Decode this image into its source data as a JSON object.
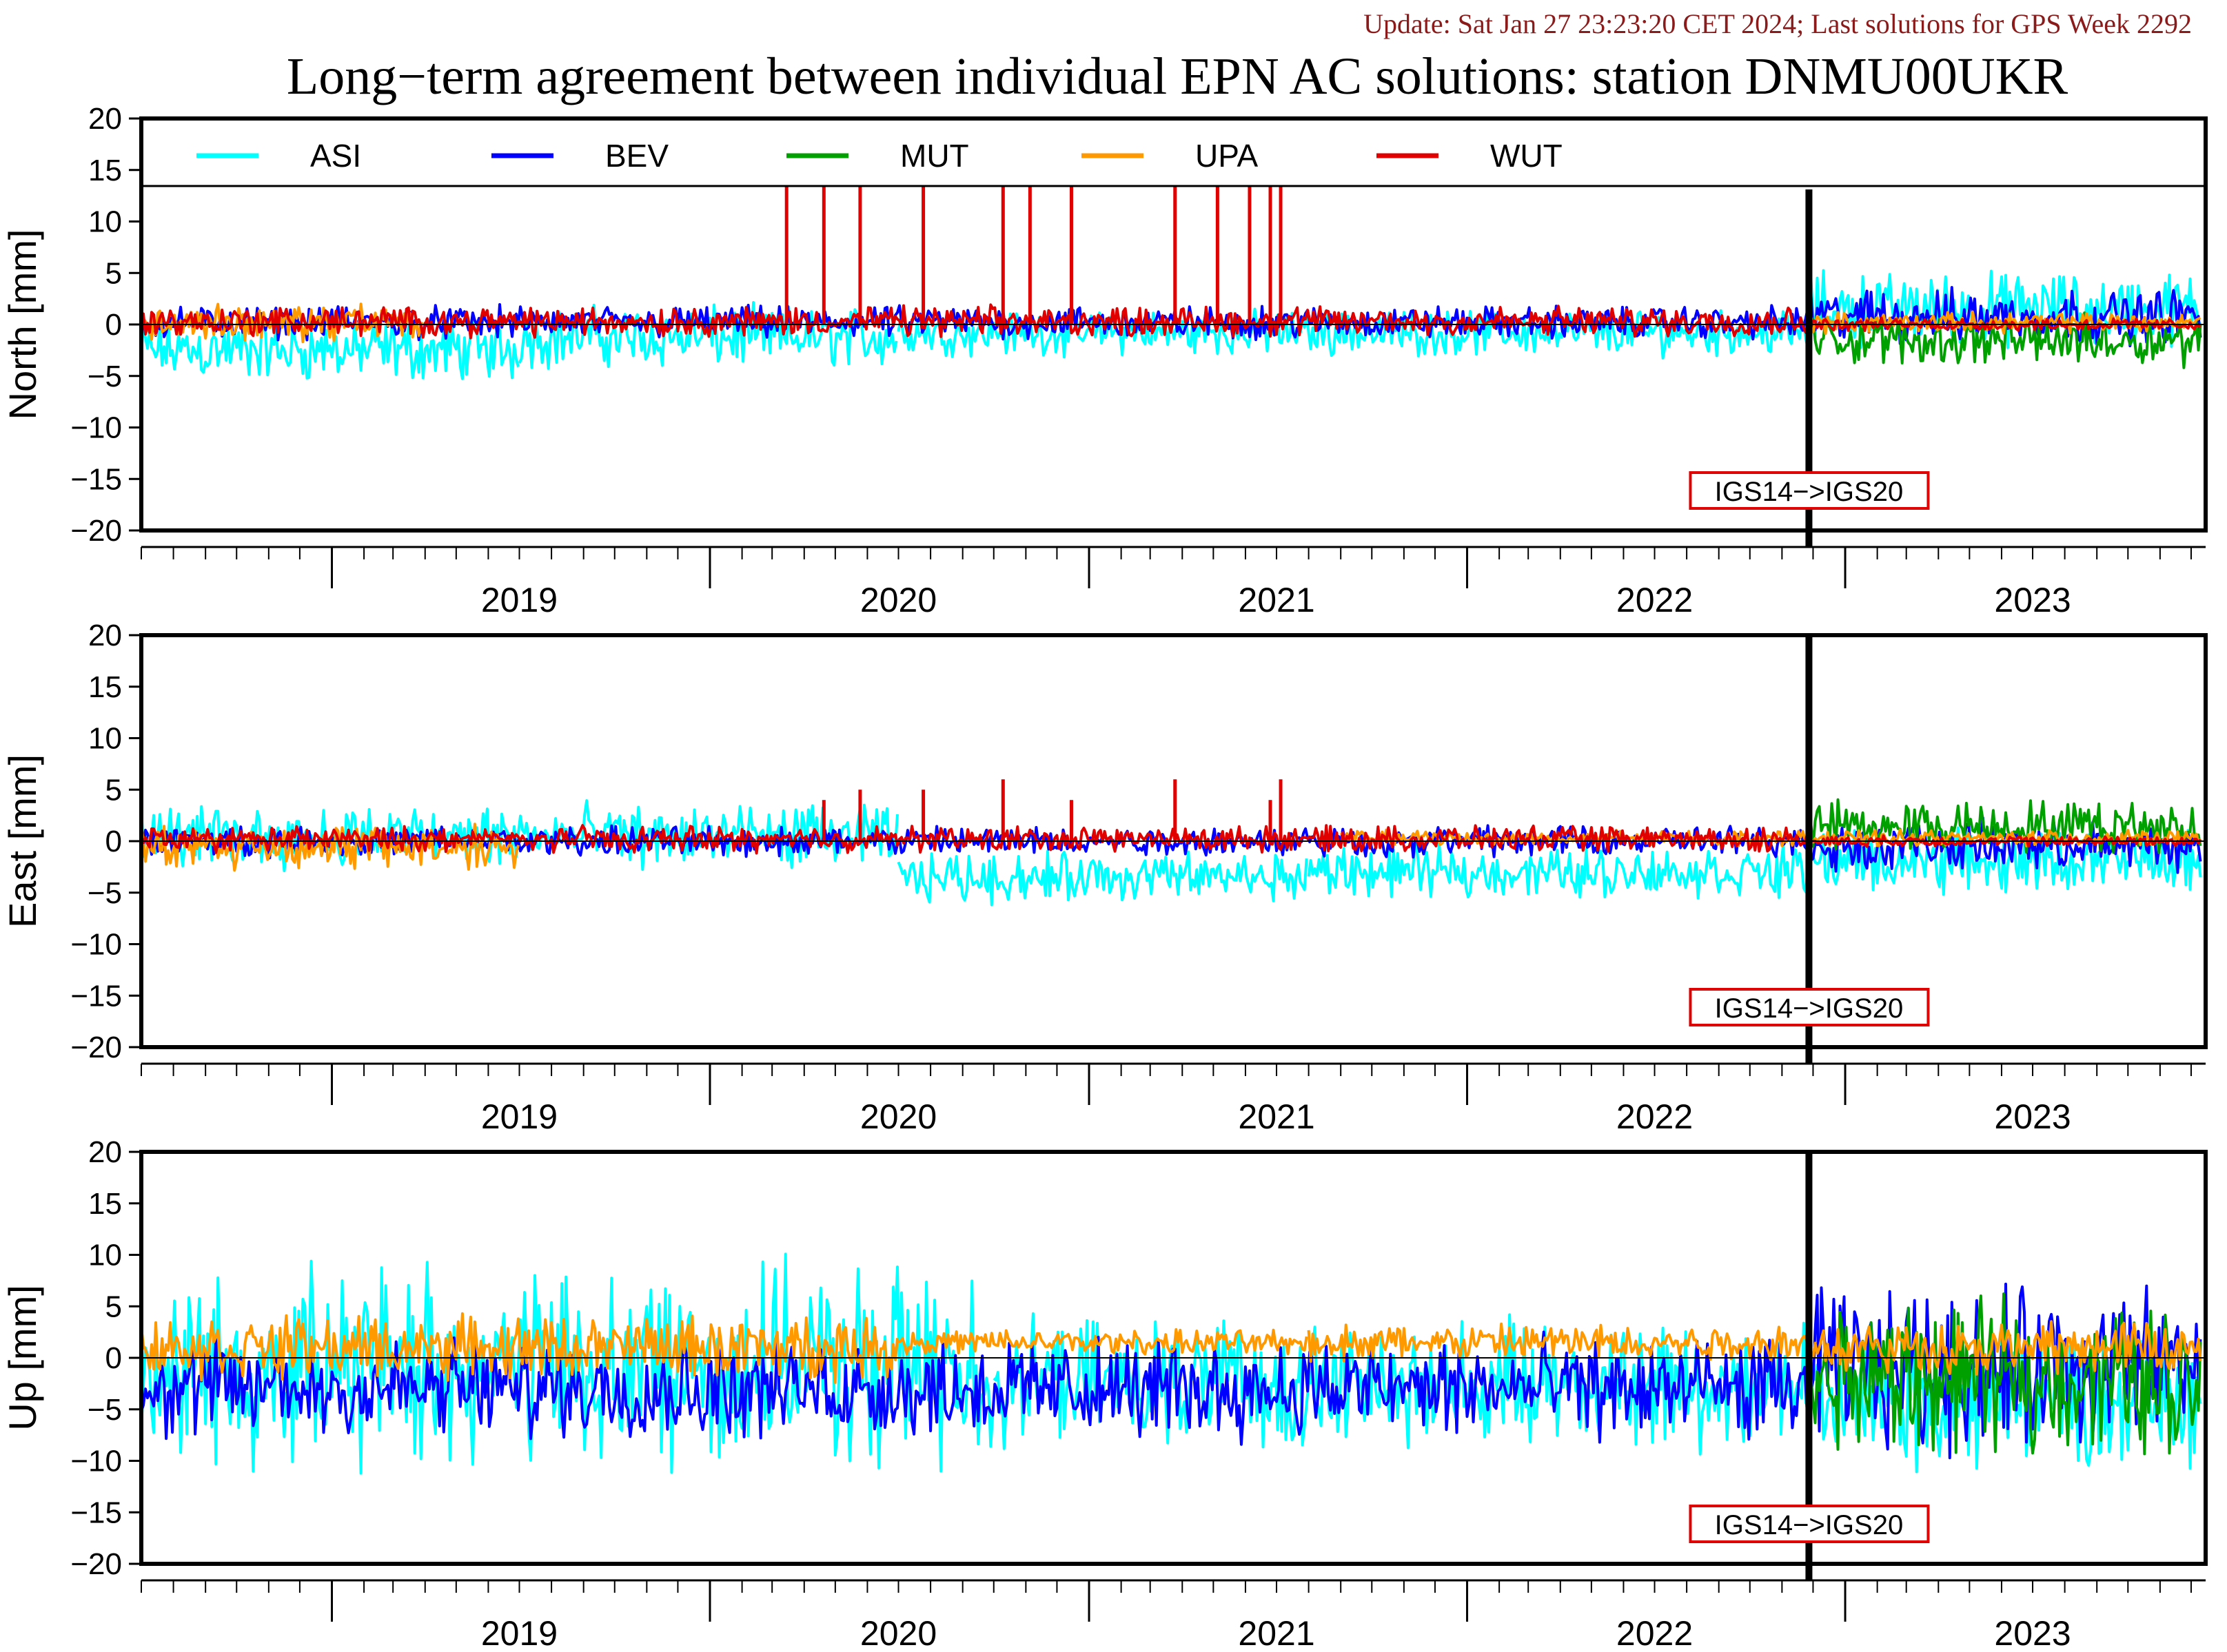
{
  "update_text": "Update: Sat Jan 27 23:23:20 CET 2024; Last solutions for GPS Week 2292",
  "colors": {
    "update_text": "#8b1a1a",
    "ASI": "#00ffff",
    "BEV": "#0000ff",
    "MUT": "#00a000",
    "UPA": "#ff9900",
    "WUT": "#e00000"
  },
  "chart_data": {
    "type": "line",
    "title": "Long−term agreement between individual EPN AC solutions: station DNMU00UKR",
    "x_range": [
      "2018-07-01",
      "2023-12-15"
    ],
    "x_tick_labels": [
      "2019",
      "2020",
      "2021",
      "2022",
      "2023"
    ],
    "legend": {
      "placement": "top, inside first panel",
      "entries": [
        "ASI",
        "BEV",
        "MUT",
        "UPA",
        "WUT"
      ]
    },
    "reference_change": {
      "label": "IGS14−>IGS20",
      "date": "2022-11-27"
    },
    "panels": [
      {
        "name": "North",
        "ylabel": "North [mm]",
        "ylim": [
          -20,
          20
        ],
        "yticks": [
          "20",
          "15",
          "10",
          "5",
          "0",
          "−5",
          "−10",
          "−15",
          "−20"
        ],
        "series": [
          {
            "name": "ASI",
            "segments": [
              {
                "from": "2018-07-01",
                "to": "2019-06-30",
                "mean": -2.5,
                "spread": 2.5
              },
              {
                "from": "2019-07-01",
                "to": "2020-06-30",
                "mean": -1.2,
                "spread": 2.5
              },
              {
                "from": "2020-07-01",
                "to": "2022-11-26",
                "mean": -0.8,
                "spread": 1.8
              },
              {
                "from": "2022-11-27",
                "to": "2023-12-10",
                "mean": 1.5,
                "spread": 3.0
              }
            ]
          },
          {
            "name": "BEV",
            "segments": [
              {
                "from": "2018-07-01",
                "to": "2022-11-26",
                "mean": 0.2,
                "spread": 1.3
              },
              {
                "from": "2022-11-27",
                "to": "2023-12-10",
                "mean": 0.8,
                "spread": 2.2
              }
            ]
          },
          {
            "name": "MUT",
            "segments": [
              {
                "from": "2022-11-27",
                "to": "2023-12-10",
                "mean": -1.5,
                "spread": 2.0
              }
            ]
          },
          {
            "name": "UPA",
            "segments": [
              {
                "from": "2018-07-01",
                "to": "2019-03-31",
                "mean": 0.2,
                "spread": 1.5
              },
              {
                "from": "2022-11-27",
                "to": "2023-12-10",
                "mean": 0.2,
                "spread": 0.8
              }
            ]
          },
          {
            "name": "WUT",
            "segments": [
              {
                "from": "2018-07-01",
                "to": "2022-11-26",
                "mean": 0.3,
                "spread": 1.2
              },
              {
                "from": "2022-11-27",
                "to": "2023-12-10",
                "mean": 0.0,
                "spread": 0.5
              }
            ],
            "spikes": [
              {
                "x": "2020-03-15",
                "y": 20
              },
              {
                "x": "2020-04-20",
                "y": 20
              },
              {
                "x": "2020-05-25",
                "y": 20
              },
              {
                "x": "2020-07-25",
                "y": 20
              },
              {
                "x": "2020-10-10",
                "y": 20
              },
              {
                "x": "2020-11-05",
                "y": 20
              },
              {
                "x": "2020-12-15",
                "y": 20
              },
              {
                "x": "2021-03-25",
                "y": 20
              },
              {
                "x": "2021-05-05",
                "y": 20
              },
              {
                "x": "2021-06-05",
                "y": 20
              },
              {
                "x": "2021-06-25",
                "y": 20
              },
              {
                "x": "2021-07-05",
                "y": 20
              }
            ]
          }
        ]
      },
      {
        "name": "East",
        "ylabel": "East [mm]",
        "ylim": [
          -20,
          20
        ],
        "yticks": [
          "20",
          "15",
          "10",
          "5",
          "0",
          "−5",
          "−10",
          "−15",
          "−20"
        ],
        "series": [
          {
            "name": "ASI",
            "segments": [
              {
                "from": "2018-07-01",
                "to": "2020-06-30",
                "mean": 0.5,
                "spread": 2.5
              },
              {
                "from": "2020-07-01",
                "to": "2021-07-31",
                "mean": -3.5,
                "spread": 2.0
              },
              {
                "from": "2021-08-01",
                "to": "2022-11-26",
                "mean": -3.0,
                "spread": 2.0
              },
              {
                "from": "2022-11-27",
                "to": "2023-12-10",
                "mean": -2.0,
                "spread": 2.5
              }
            ]
          },
          {
            "name": "BEV",
            "segments": [
              {
                "from": "2018-07-01",
                "to": "2022-11-26",
                "mean": 0.0,
                "spread": 1.2
              },
              {
                "from": "2022-11-27",
                "to": "2023-12-10",
                "mean": -0.5,
                "spread": 2.0
              }
            ]
          },
          {
            "name": "MUT",
            "segments": [
              {
                "from": "2022-11-27",
                "to": "2023-12-10",
                "mean": 1.5,
                "spread": 2.0
              }
            ]
          },
          {
            "name": "UPA",
            "segments": [
              {
                "from": "2018-07-01",
                "to": "2019-06-30",
                "mean": -0.5,
                "spread": 1.8
              },
              {
                "from": "2021-09-01",
                "to": "2022-11-26",
                "mean": 0.3,
                "spread": 0.6
              },
              {
                "from": "2022-11-27",
                "to": "2023-12-10",
                "mean": 0.3,
                "spread": 0.6
              }
            ]
          },
          {
            "name": "WUT",
            "segments": [
              {
                "from": "2018-07-01",
                "to": "2022-11-26",
                "mean": 0.2,
                "spread": 1.0
              },
              {
                "from": "2022-11-27",
                "to": "2023-12-10",
                "mean": 0.0,
                "spread": 0.4
              }
            ],
            "spikes": [
              {
                "x": "2020-04-20",
                "y": 4
              },
              {
                "x": "2020-05-25",
                "y": 5
              },
              {
                "x": "2020-07-25",
                "y": 5
              },
              {
                "x": "2020-10-10",
                "y": 6
              },
              {
                "x": "2020-12-15",
                "y": 4
              },
              {
                "x": "2021-03-25",
                "y": 6
              },
              {
                "x": "2021-06-25",
                "y": 4
              },
              {
                "x": "2021-07-05",
                "y": 6
              }
            ]
          }
        ]
      },
      {
        "name": "Up",
        "ylabel": "Up [mm]",
        "ylim": [
          -20,
          20
        ],
        "yticks": [
          "20",
          "15",
          "10",
          "5",
          "0",
          "−5",
          "−10",
          "−15",
          "−20"
        ],
        "series": [
          {
            "name": "ASI",
            "segments": [
              {
                "from": "2018-07-01",
                "to": "2020-09-30",
                "mean": -1.0,
                "spread": 8.0
              },
              {
                "from": "2020-10-01",
                "to": "2022-11-26",
                "mean": -2.5,
                "spread": 5.0
              },
              {
                "from": "2022-11-27",
                "to": "2023-12-10",
                "mean": -4.0,
                "spread": 5.5
              }
            ]
          },
          {
            "name": "BEV",
            "segments": [
              {
                "from": "2018-07-01",
                "to": "2022-11-26",
                "mean": -3.0,
                "spread": 4.0
              },
              {
                "from": "2022-11-27",
                "to": "2023-12-10",
                "mean": -1.0,
                "spread": 6.5
              }
            ]
          },
          {
            "name": "MUT",
            "segments": [
              {
                "from": "2022-11-27",
                "to": "2023-12-10",
                "mean": -2.0,
                "spread": 6.0
              }
            ]
          },
          {
            "name": "UPA",
            "segments": [
              {
                "from": "2018-07-01",
                "to": "2020-06-30",
                "mean": 1.0,
                "spread": 2.5
              },
              {
                "from": "2020-07-01",
                "to": "2021-07-31",
                "mean": 1.5,
                "spread": 1.0
              },
              {
                "from": "2021-08-01",
                "to": "2022-11-26",
                "mean": 1.5,
                "spread": 1.5
              },
              {
                "from": "2022-11-27",
                "to": "2023-12-10",
                "mean": 1.0,
                "spread": 2.0
              }
            ]
          }
        ]
      }
    ]
  }
}
